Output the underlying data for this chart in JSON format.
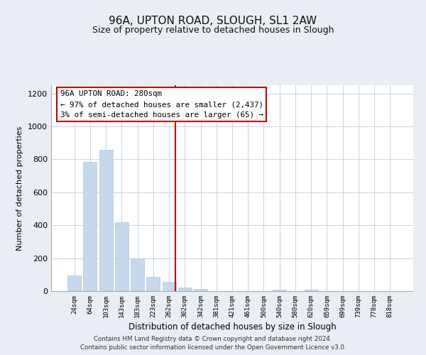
{
  "title": "96A, UPTON ROAD, SLOUGH, SL1 2AW",
  "subtitle": "Size of property relative to detached houses in Slough",
  "xlabel": "Distribution of detached houses by size in Slough",
  "ylabel": "Number of detached properties",
  "bar_labels": [
    "24sqm",
    "64sqm",
    "103sqm",
    "143sqm",
    "183sqm",
    "223sqm",
    "262sqm",
    "302sqm",
    "342sqm",
    "381sqm",
    "421sqm",
    "461sqm",
    "500sqm",
    "540sqm",
    "580sqm",
    "620sqm",
    "659sqm",
    "699sqm",
    "739sqm",
    "778sqm",
    "818sqm"
  ],
  "bar_values": [
    95,
    783,
    858,
    420,
    200,
    87,
    55,
    23,
    13,
    2,
    1,
    0,
    0,
    10,
    0,
    10,
    0,
    0,
    0,
    0,
    0
  ],
  "bar_color": "#c5d8ec",
  "bar_edge_color": "#b0c8e0",
  "vline_x": 6.42,
  "vline_color": "#cc0000",
  "ylim": [
    0,
    1250
  ],
  "yticks": [
    0,
    200,
    400,
    600,
    800,
    1000,
    1200
  ],
  "annotation_line1": "96A UPTON ROAD: 280sqm",
  "annotation_line2": "← 97% of detached houses are smaller (2,437)",
  "annotation_line3": "3% of semi-detached houses are larger (65) →",
  "footer_line1": "Contains HM Land Registry data © Crown copyright and database right 2024.",
  "footer_line2": "Contains public sector information licensed under the Open Government Licence v3.0.",
  "background_color": "#e8eef4",
  "plot_bg_color": "#ffffff",
  "grid_color": "#c8d4e0"
}
